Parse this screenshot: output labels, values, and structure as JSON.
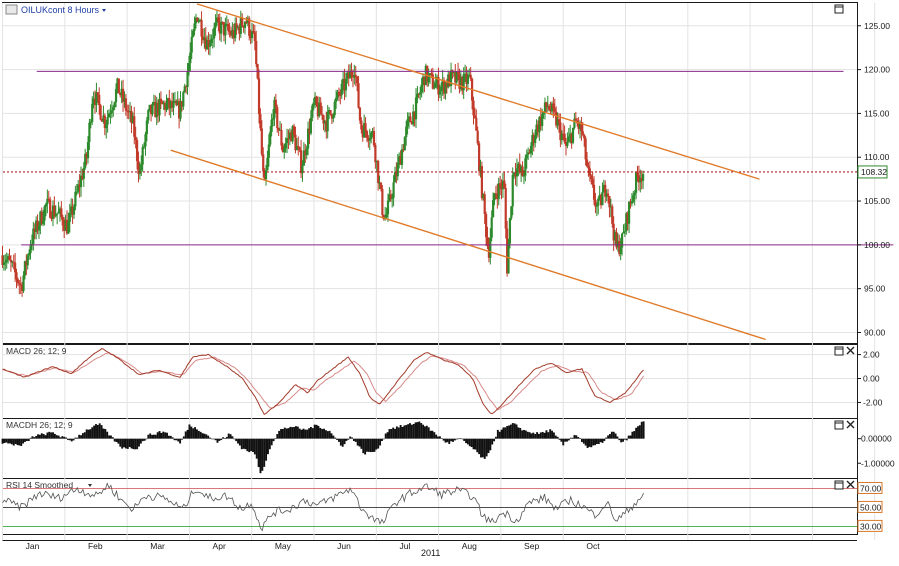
{
  "chart_data": {
    "type": "candlestick",
    "title": "OILUKcont 8 Hours",
    "xlabel": "2011",
    "months": [
      "Jan",
      "Feb",
      "Mar",
      "Apr",
      "May",
      "Jun",
      "Jul",
      "Aug",
      "Sep",
      "Oct"
    ],
    "price_axis": {
      "ticks": [
        "125.00",
        "120.00",
        "115.00",
        "110.00",
        "105.00",
        "100.00",
        "95.00",
        "90.00"
      ],
      "ylim": [
        88.8,
        127.6
      ]
    },
    "last_price": "108.32",
    "price_path": [
      [
        0.0,
        98.8
      ],
      [
        0.15,
        97.5
      ],
      [
        0.3,
        95.2
      ],
      [
        0.45,
        100.3
      ],
      [
        0.7,
        104.5
      ],
      [
        0.9,
        103.5
      ],
      [
        1.05,
        102.0
      ],
      [
        1.2,
        106.0
      ],
      [
        1.35,
        110.0
      ],
      [
        1.45,
        117.5
      ],
      [
        1.65,
        114.0
      ],
      [
        1.85,
        118.0
      ],
      [
        2.1,
        113.5
      ],
      [
        2.2,
        108.0
      ],
      [
        2.35,
        115.0
      ],
      [
        2.6,
        116.0
      ],
      [
        2.85,
        115.3
      ],
      [
        3.0,
        121.0
      ],
      [
        3.12,
        126.5
      ],
      [
        3.28,
        123.0
      ],
      [
        3.45,
        125.0
      ],
      [
        3.7,
        124.0
      ],
      [
        3.9,
        125.8
      ],
      [
        4.05,
        123.0
      ],
      [
        4.2,
        106.0
      ],
      [
        4.35,
        116.0
      ],
      [
        4.5,
        111.0
      ],
      [
        4.65,
        113.0
      ],
      [
        4.8,
        109.0
      ],
      [
        5.0,
        116.0
      ],
      [
        5.2,
        114.0
      ],
      [
        5.4,
        117.0
      ],
      [
        5.55,
        119.0
      ],
      [
        5.65,
        120.5
      ],
      [
        5.75,
        113.5
      ],
      [
        5.95,
        112.5
      ],
      [
        6.1,
        104.0
      ],
      [
        6.15,
        103.0
      ],
      [
        6.35,
        109.0
      ],
      [
        6.5,
        113.5
      ],
      [
        6.65,
        116.0
      ],
      [
        6.78,
        119.5
      ],
      [
        6.9,
        118.5
      ],
      [
        7.05,
        118.0
      ],
      [
        7.2,
        119.0
      ],
      [
        7.4,
        118.5
      ],
      [
        7.5,
        119.0
      ],
      [
        7.6,
        113.0
      ],
      [
        7.7,
        106.0
      ],
      [
        7.8,
        99.0
      ],
      [
        7.9,
        106.0
      ],
      [
        8.05,
        107.0
      ],
      [
        8.1,
        97.5
      ],
      [
        8.2,
        109.0
      ],
      [
        8.35,
        108.0
      ],
      [
        8.55,
        113.0
      ],
      [
        8.75,
        116.0
      ],
      [
        8.9,
        114.0
      ],
      [
        9.05,
        111.0
      ],
      [
        9.2,
        114.0
      ],
      [
        9.3,
        113.0
      ],
      [
        9.4,
        108.0
      ],
      [
        9.55,
        104.0
      ],
      [
        9.7,
        107.0
      ],
      [
        9.85,
        99.5
      ],
      [
        9.95,
        100.5
      ],
      [
        10.05,
        104.0
      ],
      [
        10.2,
        108.0
      ],
      [
        10.3,
        108.3
      ]
    ],
    "annotations": {
      "resistance_line": {
        "from": [
          0.55,
          119.8
        ],
        "to": [
          13.5,
          119.8
        ],
        "label": ""
      },
      "support_line": {
        "from": [
          0.3,
          100.0
        ],
        "to": [
          14.3,
          100.0
        ],
        "label": ""
      },
      "upper_trend": {
        "from": [
          3.12,
          127.5
        ],
        "to": [
          12.15,
          107.5
        ],
        "label": ""
      },
      "lower_trend": {
        "from": [
          2.7,
          110.8
        ],
        "to": [
          12.25,
          89.2
        ],
        "label": ""
      }
    },
    "macd": {
      "title": "MACD 26; 12; 9",
      "ticks": [
        "2.00",
        "0.00",
        "-2.00"
      ],
      "ylim": [
        -3.3,
        2.8
      ],
      "line_path": [
        [
          0,
          0.8
        ],
        [
          0.35,
          0.1
        ],
        [
          0.8,
          1.0
        ],
        [
          1.1,
          0.4
        ],
        [
          1.4,
          1.8
        ],
        [
          1.6,
          2.5
        ],
        [
          1.85,
          1.7
        ],
        [
          2.2,
          0.3
        ],
        [
          2.5,
          0.7
        ],
        [
          2.85,
          0.1
        ],
        [
          3.05,
          1.8
        ],
        [
          3.3,
          2.0
        ],
        [
          3.6,
          1.0
        ],
        [
          3.85,
          0.0
        ],
        [
          4.05,
          -1.5
        ],
        [
          4.2,
          -3.0
        ],
        [
          4.45,
          -2.0
        ],
        [
          4.7,
          -0.5
        ],
        [
          4.9,
          -1.2
        ],
        [
          5.05,
          -0.2
        ],
        [
          5.3,
          0.8
        ],
        [
          5.55,
          1.8
        ],
        [
          5.75,
          0.3
        ],
        [
          5.9,
          -1.6
        ],
        [
          6.05,
          -2.2
        ],
        [
          6.3,
          -0.5
        ],
        [
          6.6,
          1.5
        ],
        [
          6.8,
          2.2
        ],
        [
          7.1,
          1.5
        ],
        [
          7.3,
          1.2
        ],
        [
          7.55,
          0.0
        ],
        [
          7.7,
          -2.0
        ],
        [
          7.85,
          -3.0
        ],
        [
          8.05,
          -2.0
        ],
        [
          8.3,
          -0.5
        ],
        [
          8.55,
          0.8
        ],
        [
          8.8,
          1.3
        ],
        [
          9.05,
          0.5
        ],
        [
          9.3,
          0.8
        ],
        [
          9.5,
          -1.4
        ],
        [
          9.75,
          -2.0
        ],
        [
          10.0,
          -1.2
        ],
        [
          10.3,
          0.8
        ]
      ],
      "signal_path": [
        [
          0,
          0.7
        ],
        [
          0.4,
          0.2
        ],
        [
          0.85,
          0.9
        ],
        [
          1.15,
          0.5
        ],
        [
          1.45,
          1.5
        ],
        [
          1.7,
          2.2
        ],
        [
          1.95,
          1.5
        ],
        [
          2.25,
          0.4
        ],
        [
          2.55,
          0.6
        ],
        [
          2.9,
          0.3
        ],
        [
          3.1,
          1.5
        ],
        [
          3.4,
          1.8
        ],
        [
          3.7,
          1.0
        ],
        [
          3.9,
          0.1
        ],
        [
          4.1,
          -1.2
        ],
        [
          4.3,
          -2.5
        ],
        [
          4.55,
          -2.0
        ],
        [
          4.8,
          -0.8
        ],
        [
          5.0,
          -1.0
        ],
        [
          5.15,
          -0.3
        ],
        [
          5.4,
          0.6
        ],
        [
          5.65,
          1.5
        ],
        [
          5.85,
          0.4
        ],
        [
          6.0,
          -1.2
        ],
        [
          6.15,
          -1.9
        ],
        [
          6.4,
          -0.6
        ],
        [
          6.7,
          1.2
        ],
        [
          6.9,
          1.9
        ],
        [
          7.2,
          1.5
        ],
        [
          7.4,
          1.1
        ],
        [
          7.6,
          0.1
        ],
        [
          7.8,
          -1.6
        ],
        [
          7.95,
          -2.6
        ],
        [
          8.15,
          -2.0
        ],
        [
          8.4,
          -0.7
        ],
        [
          8.65,
          0.6
        ],
        [
          8.9,
          1.1
        ],
        [
          9.15,
          0.6
        ],
        [
          9.4,
          0.5
        ],
        [
          9.6,
          -1.1
        ],
        [
          9.85,
          -1.8
        ],
        [
          10.1,
          -1.3
        ],
        [
          10.3,
          0.3
        ]
      ]
    },
    "macdh": {
      "title": "MACDH 26; 12; 9",
      "ticks": [
        "0.00000",
        "-1.00000"
      ],
      "ylim": [
        -1.6,
        0.8
      ],
      "hist_path": [
        [
          0,
          -0.15
        ],
        [
          0.3,
          -0.3
        ],
        [
          0.5,
          0.1
        ],
        [
          0.8,
          0.25
        ],
        [
          1.1,
          -0.1
        ],
        [
          1.35,
          0.35
        ],
        [
          1.55,
          0.6
        ],
        [
          1.7,
          0.2
        ],
        [
          1.9,
          -0.35
        ],
        [
          2.15,
          -0.4
        ],
        [
          2.35,
          0.15
        ],
        [
          2.6,
          0.3
        ],
        [
          2.85,
          -0.2
        ],
        [
          3.0,
          0.55
        ],
        [
          3.2,
          0.3
        ],
        [
          3.45,
          -0.15
        ],
        [
          3.65,
          0.2
        ],
        [
          3.85,
          -0.4
        ],
        [
          4.05,
          -0.6
        ],
        [
          4.15,
          -1.5
        ],
        [
          4.3,
          -0.3
        ],
        [
          4.45,
          0.35
        ],
        [
          4.65,
          0.5
        ],
        [
          4.85,
          0.35
        ],
        [
          5.05,
          0.55
        ],
        [
          5.25,
          0.3
        ],
        [
          5.45,
          -0.3
        ],
        [
          5.6,
          0.1
        ],
        [
          5.8,
          -0.6
        ],
        [
          6.0,
          -0.5
        ],
        [
          6.2,
          0.4
        ],
        [
          6.5,
          0.55
        ],
        [
          6.7,
          0.7
        ],
        [
          6.9,
          0.3
        ],
        [
          7.15,
          -0.2
        ],
        [
          7.35,
          0.0
        ],
        [
          7.55,
          -0.4
        ],
        [
          7.75,
          -0.9
        ],
        [
          7.95,
          0.3
        ],
        [
          8.2,
          0.6
        ],
        [
          8.4,
          0.3
        ],
        [
          8.6,
          0.2
        ],
        [
          8.8,
          0.35
        ],
        [
          9.0,
          -0.25
        ],
        [
          9.2,
          0.2
        ],
        [
          9.4,
          -0.4
        ],
        [
          9.6,
          -0.2
        ],
        [
          9.8,
          0.3
        ],
        [
          9.95,
          -0.2
        ],
        [
          10.15,
          0.35
        ],
        [
          10.3,
          0.75
        ]
      ]
    },
    "rsi": {
      "title": "RSI 14 Smoothed",
      "ticks": [
        "70.00",
        "50.00",
        "30.00"
      ],
      "ylim": [
        22,
        80
      ],
      "levels": [
        70,
        50,
        30
      ],
      "line_path": [
        [
          0,
          58
        ],
        [
          0.3,
          50
        ],
        [
          0.6,
          65
        ],
        [
          0.9,
          60
        ],
        [
          1.2,
          70
        ],
        [
          1.5,
          62
        ],
        [
          1.7,
          74
        ],
        [
          1.9,
          58
        ],
        [
          2.1,
          48
        ],
        [
          2.3,
          63
        ],
        [
          2.6,
          60
        ],
        [
          2.9,
          48
        ],
        [
          3.1,
          71
        ],
        [
          3.3,
          60
        ],
        [
          3.6,
          62
        ],
        [
          3.85,
          48
        ],
        [
          4.0,
          56
        ],
        [
          4.15,
          28
        ],
        [
          4.35,
          45
        ],
        [
          4.6,
          48
        ],
        [
          4.85,
          58
        ],
        [
          5.05,
          52
        ],
        [
          5.3,
          60
        ],
        [
          5.6,
          70
        ],
        [
          5.75,
          50
        ],
        [
          5.95,
          38
        ],
        [
          6.1,
          33
        ],
        [
          6.3,
          55
        ],
        [
          6.55,
          65
        ],
        [
          6.8,
          72
        ],
        [
          7.05,
          64
        ],
        [
          7.3,
          68
        ],
        [
          7.55,
          62
        ],
        [
          7.7,
          42
        ],
        [
          7.85,
          34
        ],
        [
          8.05,
          45
        ],
        [
          8.25,
          36
        ],
        [
          8.45,
          55
        ],
        [
          8.7,
          60
        ],
        [
          8.9,
          48
        ],
        [
          9.1,
          58
        ],
        [
          9.3,
          52
        ],
        [
          9.5,
          42
        ],
        [
          9.7,
          55
        ],
        [
          9.85,
          36
        ],
        [
          10.0,
          44
        ],
        [
          10.2,
          58
        ],
        [
          10.3,
          64
        ]
      ]
    }
  }
}
